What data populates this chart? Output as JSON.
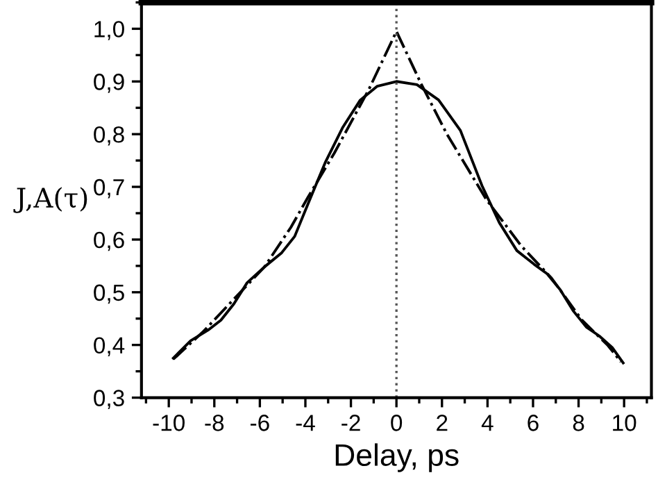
{
  "chart_data": {
    "type": "line",
    "xlabel": "Delay, ps",
    "ylabel": "J,A(τ)",
    "xlim": [
      -11.2,
      11.2
    ],
    "ylim": [
      0.3,
      1.05
    ],
    "xticks": [
      -10,
      -8,
      -6,
      -4,
      -2,
      0,
      2,
      4,
      6,
      8,
      10
    ],
    "yticks": [
      {
        "value": 0.3,
        "label": "0,3"
      },
      {
        "value": 0.4,
        "label": "0,4"
      },
      {
        "value": 0.5,
        "label": "0,5"
      },
      {
        "value": 0.6,
        "label": "0,6"
      },
      {
        "value": 0.7,
        "label": "0,7"
      },
      {
        "value": 0.8,
        "label": "0,8"
      },
      {
        "value": 0.9,
        "label": "0,9"
      },
      {
        "value": 1.0,
        "label": "1,0"
      }
    ],
    "grid": false,
    "marker": "none",
    "ref_lines": [
      {
        "axis": "x",
        "value": 0,
        "color": "#555555",
        "line_style": "dotted"
      }
    ],
    "series": [
      {
        "color": "#000000",
        "line_style": "solid",
        "x": [
          -9.8,
          -9.04,
          -8.28,
          -7.71,
          -7.14,
          -6.56,
          -5.8,
          -5.04,
          -4.47,
          -3.89,
          -3.13,
          -2.37,
          -1.6,
          -0.84,
          0,
          0.9,
          1.85,
          2.81,
          3.76,
          4.52,
          5.29,
          6.05,
          6.62,
          7.19,
          7.76,
          8.34,
          8.91,
          9.48,
          9.96
        ],
        "values": [
          0.375,
          0.408,
          0.428,
          0.447,
          0.478,
          0.518,
          0.548,
          0.575,
          0.606,
          0.667,
          0.746,
          0.812,
          0.864,
          0.891,
          0.9,
          0.894,
          0.865,
          0.807,
          0.702,
          0.632,
          0.579,
          0.553,
          0.535,
          0.505,
          0.465,
          0.434,
          0.417,
          0.395,
          0.366
        ]
      },
      {
        "color": "#000000",
        "line_style": "dashdot",
        "x": [
          -9.8,
          -8.47,
          -7.14,
          -5.8,
          -4.64,
          -3.89,
          -2.73,
          -1.2,
          0,
          1.09,
          2.23,
          3.95,
          5.48,
          6.81,
          8.15,
          9.29,
          9.86
        ],
        "values": [
          0.373,
          0.426,
          0.487,
          0.548,
          0.623,
          0.68,
          0.764,
          0.886,
          0.995,
          0.895,
          0.799,
          0.676,
          0.588,
          0.527,
          0.447,
          0.399,
          0.368
        ]
      }
    ]
  }
}
